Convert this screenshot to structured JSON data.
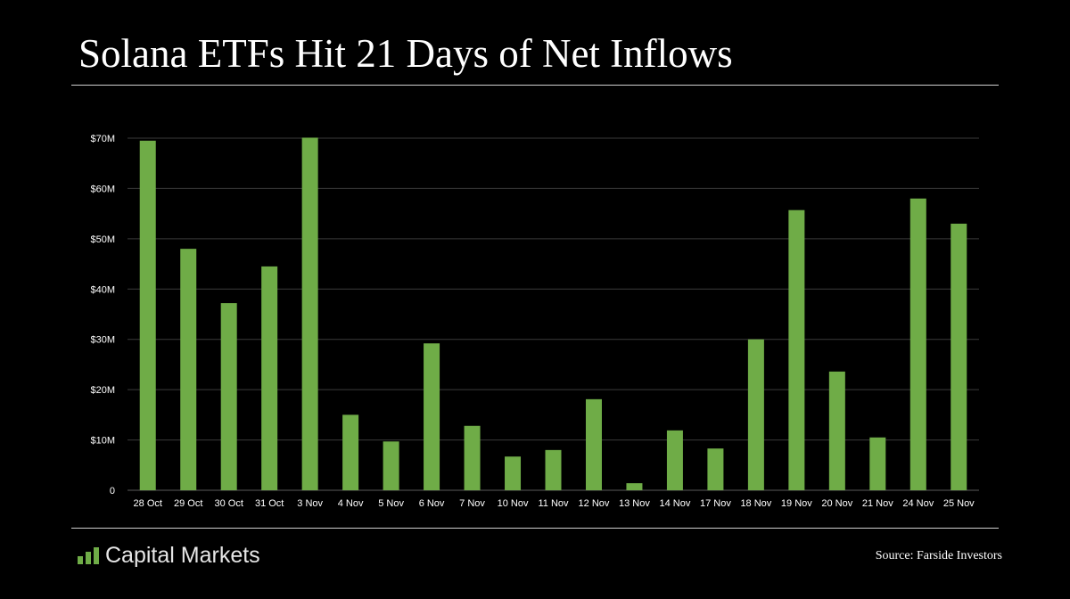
{
  "header": {
    "title": "Solana ETFs Hit 21 Days of Net Inflows"
  },
  "footer": {
    "brand": "Capital Markets",
    "brand_icon": "bar-chart-logo-icon",
    "source": "Source: Farside Investors"
  },
  "colors": {
    "background": "#000000",
    "bar": "#6fac47",
    "gridline": "#3a3a3a",
    "logo": "#6fac47"
  },
  "chart_data": {
    "type": "bar",
    "title": "Solana ETFs Hit 21 Days of Net Inflows",
    "xlabel": "",
    "ylabel": "",
    "ylim": [
      0,
      70
    ],
    "yticks": [
      0,
      10,
      20,
      30,
      40,
      50,
      60,
      70
    ],
    "ytick_labels": [
      "0",
      "$10M",
      "$20M",
      "$30M",
      "$40M",
      "$50M",
      "$60M",
      "$70M"
    ],
    "grid": true,
    "categories": [
      "28 Oct",
      "29 Oct",
      "30 Oct",
      "31 Oct",
      "3 Nov",
      "4 Nov",
      "5 Nov",
      "6 Nov",
      "7 Nov",
      "10 Nov",
      "11 Nov",
      "12 Nov",
      "13 Nov",
      "14 Nov",
      "17 Nov",
      "18 Nov",
      "19 Nov",
      "20 Nov",
      "21 Nov",
      "24 Nov",
      "25 Nov"
    ],
    "values": [
      69.5,
      48,
      37.2,
      44.5,
      70.1,
      15,
      9.7,
      29.2,
      12.8,
      6.7,
      8,
      18.1,
      1.4,
      11.9,
      8.3,
      30,
      55.7,
      23.6,
      10.5,
      58,
      53
    ]
  }
}
